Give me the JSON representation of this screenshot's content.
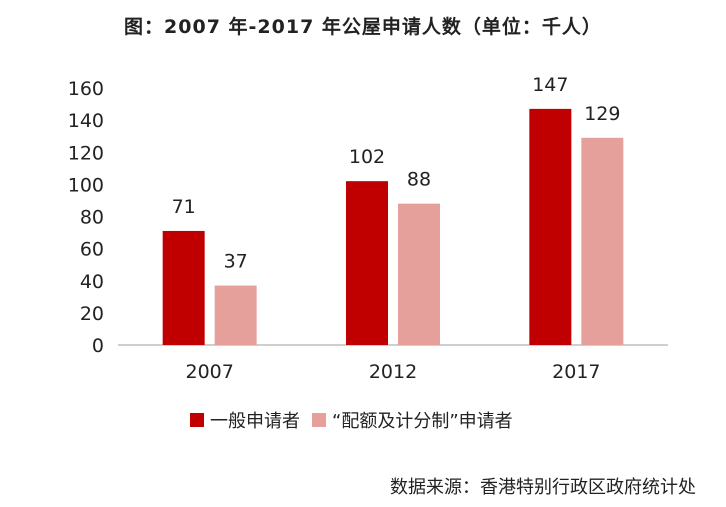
{
  "title": "图：2007 年-2017 年公屋申请人数（单位：千人）",
  "source": "数据来源：香港特别行政区政府统计处",
  "chart_data": {
    "type": "bar",
    "categories": [
      "2007",
      "2012",
      "2017"
    ],
    "series": [
      {
        "name": "一般申请者",
        "values": [
          71,
          102,
          147
        ],
        "color": "#C00000"
      },
      {
        "name": "“配额及计分制”申请者",
        "values": [
          37,
          88,
          129
        ],
        "color": "#E6A09C"
      }
    ],
    "ylim": [
      0,
      160
    ],
    "yticks": [
      0,
      20,
      40,
      60,
      80,
      100,
      120,
      140,
      160
    ],
    "grid": false,
    "legend_position": "bottom"
  }
}
